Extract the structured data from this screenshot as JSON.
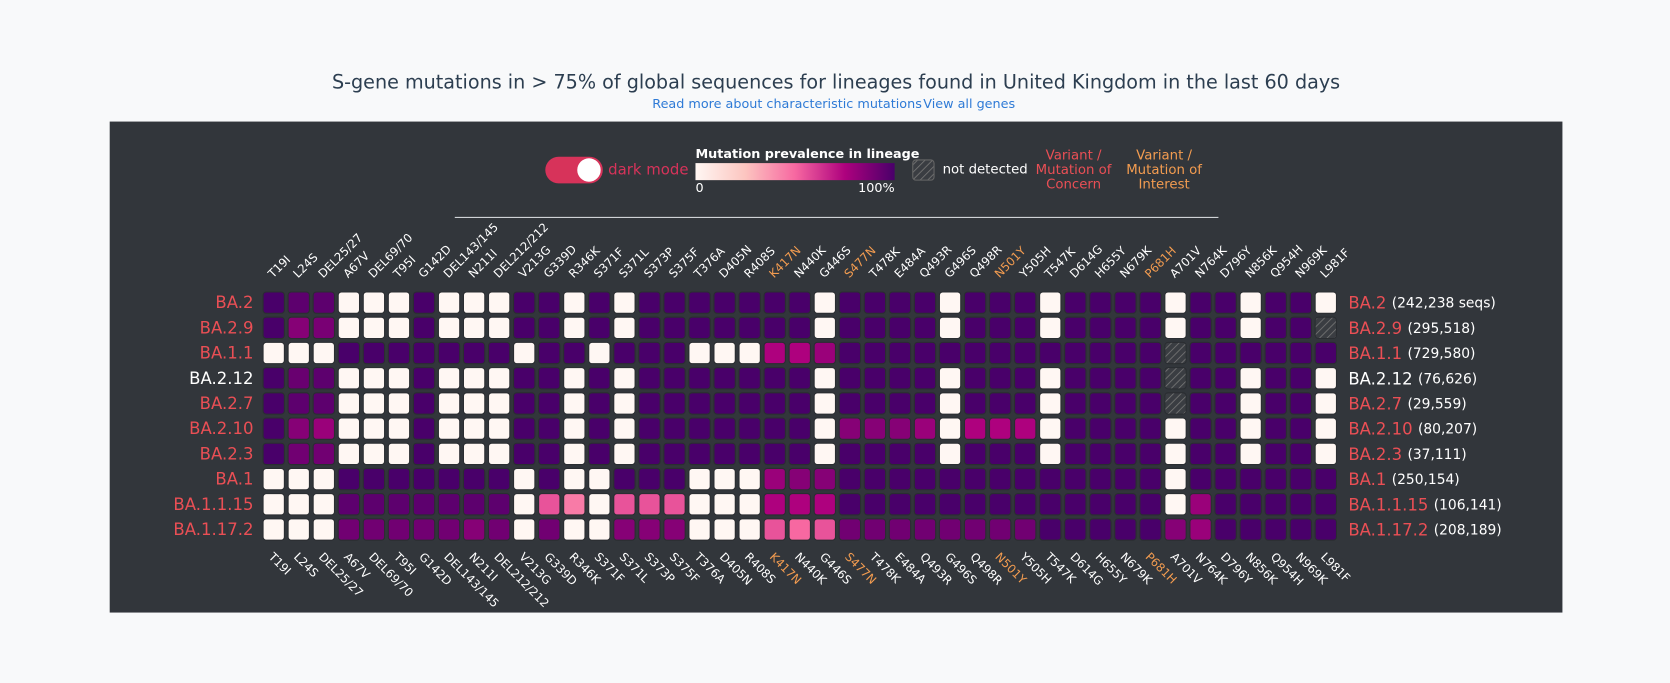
{
  "chart_data": {
    "type": "heatmap",
    "title": "S-gene mutations in > 75% of global sequences for lineages found in United Kingdom in the last 60 days",
    "links": [
      "Read more about characteristic mutations",
      "View all genes"
    ],
    "toggle_label": "dark mode",
    "legend_title": "Mutation prevalence in lineage",
    "legend_ticks": [
      0,
      {
        "value": 100,
        "label": "100%"
      }
    ],
    "zlim": [
      0,
      100
    ],
    "colors": [
      "#fff7f3",
      "#fcc5c0",
      "#f768a1",
      "#ae017e",
      "#49006a"
    ],
    "not_detected_label": "not detected",
    "concern_label": [
      "Variant /",
      "Mutation of",
      "Concern"
    ],
    "interest_label": [
      "Variant /",
      "Mutation of",
      "Interest"
    ],
    "concern_color": "#ea4f55",
    "interest_color": "#f39c50",
    "categories": [
      "T19I",
      "L24S",
      "DEL25/27",
      "A67V",
      "DEL69/70",
      "T95I",
      "G142D",
      "DEL143/145",
      "N211I",
      "DEL212/212",
      "V213G",
      "G339D",
      "R346K",
      "S371F",
      "S371L",
      "S373P",
      "S375F",
      "T376A",
      "D405N",
      "R408S",
      "K417N",
      "N440K",
      "G446S",
      "S477N",
      "T478K",
      "E484A",
      "Q493R",
      "G496S",
      "Q498R",
      "N501Y",
      "Y505H",
      "T547K",
      "D614G",
      "H655Y",
      "N679K",
      "P681H",
      "A701V",
      "N764K",
      "D796Y",
      "N856K",
      "Q954H",
      "N969K",
      "L981F"
    ],
    "highlight": [
      "K417N",
      "S477N",
      "N501Y",
      "P681H"
    ],
    "rows": [
      "BA.2",
      "BA.2.9",
      "BA.1.1",
      "BA.2.12",
      "BA.2.7",
      "BA.2.10",
      "BA.2.3",
      "BA.1",
      "BA.1.1.15",
      "BA.1.17.2"
    ],
    "row_notes": [
      "(242,238 seqs)",
      "(295,518)",
      "(729,580)",
      "(76,626)",
      "(29,559)",
      "(80,207)",
      "(37,111)",
      "(250,154)",
      "(106,141)",
      "(208,189)"
    ],
    "row_colors": [
      "#ea4f55",
      "#ea4f55",
      "#ea4f55",
      "#ffffff",
      "#ea4f55",
      "#ea4f55",
      "#ea4f55",
      "#ea4f55",
      "#ea4f55",
      "#ea4f55"
    ],
    "values": [
      [
        100,
        95,
        95,
        0,
        0,
        0,
        100,
        0,
        0,
        0,
        100,
        100,
        0,
        100,
        0,
        100,
        100,
        100,
        100,
        100,
        100,
        100,
        0,
        100,
        100,
        100,
        100,
        0,
        100,
        100,
        100,
        0,
        100,
        100,
        100,
        100,
        0,
        100,
        100,
        0,
        100,
        100,
        0
      ],
      [
        100,
        85,
        88,
        0,
        0,
        0,
        100,
        0,
        0,
        0,
        100,
        100,
        0,
        100,
        0,
        100,
        100,
        100,
        100,
        100,
        100,
        100,
        0,
        100,
        100,
        100,
        100,
        0,
        100,
        100,
        100,
        0,
        100,
        100,
        100,
        100,
        0,
        100,
        100,
        0,
        100,
        100,
        null
      ],
      [
        0,
        0,
        0,
        100,
        100,
        100,
        100,
        100,
        100,
        100,
        0,
        100,
        100,
        0,
        100,
        100,
        100,
        0,
        0,
        0,
        75,
        75,
        80,
        100,
        100,
        100,
        100,
        100,
        100,
        100,
        100,
        100,
        100,
        100,
        100,
        100,
        null,
        100,
        100,
        100,
        100,
        100,
        100
      ],
      [
        100,
        92,
        95,
        0,
        0,
        0,
        100,
        0,
        0,
        0,
        100,
        100,
        0,
        100,
        0,
        100,
        100,
        100,
        100,
        100,
        100,
        100,
        0,
        100,
        100,
        100,
        100,
        0,
        100,
        100,
        100,
        0,
        100,
        100,
        100,
        100,
        null,
        100,
        100,
        0,
        100,
        100,
        0
      ],
      [
        100,
        95,
        95,
        0,
        0,
        0,
        100,
        0,
        0,
        0,
        100,
        100,
        0,
        100,
        0,
        100,
        100,
        100,
        100,
        100,
        100,
        100,
        0,
        100,
        100,
        100,
        100,
        0,
        100,
        100,
        100,
        0,
        100,
        100,
        100,
        100,
        null,
        100,
        100,
        0,
        100,
        100,
        0
      ],
      [
        100,
        85,
        80,
        0,
        0,
        0,
        100,
        0,
        0,
        0,
        100,
        100,
        0,
        100,
        0,
        100,
        100,
        100,
        100,
        100,
        100,
        100,
        0,
        85,
        85,
        85,
        80,
        0,
        75,
        75,
        75,
        0,
        100,
        100,
        100,
        100,
        0,
        100,
        100,
        0,
        100,
        100,
        0
      ],
      [
        100,
        90,
        90,
        0,
        0,
        0,
        100,
        0,
        0,
        0,
        100,
        100,
        0,
        100,
        0,
        100,
        100,
        100,
        100,
        100,
        100,
        100,
        0,
        100,
        100,
        100,
        100,
        0,
        100,
        100,
        100,
        0,
        100,
        100,
        100,
        100,
        0,
        100,
        100,
        0,
        100,
        100,
        0
      ],
      [
        0,
        0,
        0,
        100,
        100,
        100,
        100,
        100,
        100,
        100,
        0,
        100,
        0,
        0,
        100,
        100,
        100,
        0,
        0,
        0,
        80,
        85,
        85,
        100,
        100,
        100,
        100,
        100,
        100,
        100,
        100,
        100,
        100,
        100,
        100,
        100,
        0,
        100,
        100,
        100,
        100,
        100,
        100
      ],
      [
        0,
        0,
        0,
        95,
        95,
        95,
        95,
        95,
        95,
        95,
        0,
        55,
        45,
        0,
        55,
        55,
        55,
        0,
        0,
        0,
        75,
        75,
        75,
        100,
        100,
        100,
        100,
        100,
        100,
        100,
        100,
        100,
        100,
        100,
        100,
        100,
        0,
        80,
        100,
        100,
        100,
        100,
        100
      ],
      [
        0,
        0,
        0,
        90,
        90,
        90,
        90,
        90,
        85,
        90,
        0,
        90,
        0,
        0,
        85,
        85,
        85,
        0,
        0,
        0,
        55,
        50,
        55,
        90,
        90,
        90,
        90,
        90,
        90,
        90,
        90,
        100,
        100,
        100,
        100,
        100,
        85,
        80,
        100,
        100,
        100,
        100,
        100
      ]
    ]
  }
}
